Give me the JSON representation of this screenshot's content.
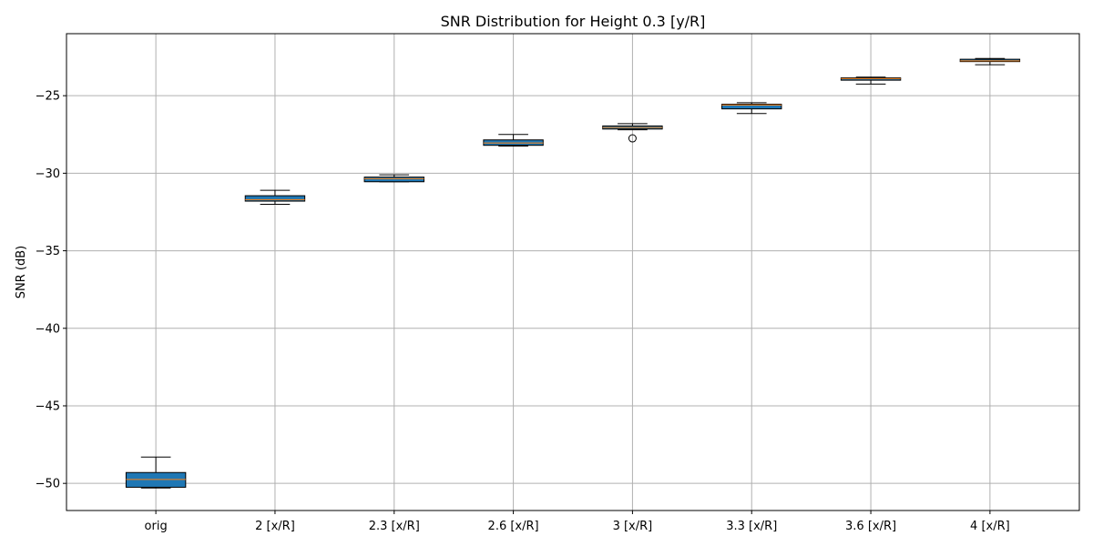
{
  "chart_data": {
    "type": "box",
    "title": "SNR Distribution for Height 0.3 [y/R]",
    "xlabel": "",
    "ylabel": "SNR (dB)",
    "categories": [
      "orig",
      "2 [x/R]",
      "2.3 [x/R]",
      "2.6 [x/R]",
      "3 [x/R]",
      "3.3 [x/R]",
      "3.6 [x/R]",
      "4 [x/R]"
    ],
    "boxes": [
      {
        "whisker_low": -50.3,
        "q1": -50.25,
        "median": -49.75,
        "q3": -49.3,
        "whisker_high": -48.3,
        "outliers": []
      },
      {
        "whisker_low": -32.0,
        "q1": -31.8,
        "median": -31.7,
        "q3": -31.45,
        "whisker_high": -31.1,
        "outliers": []
      },
      {
        "whisker_low": -30.55,
        "q1": -30.55,
        "median": -30.35,
        "q3": -30.25,
        "whisker_high": -30.1,
        "outliers": []
      },
      {
        "whisker_low": -28.25,
        "q1": -28.2,
        "median": -28.05,
        "q3": -27.85,
        "whisker_high": -27.5,
        "outliers": []
      },
      {
        "whisker_low": -27.2,
        "q1": -27.15,
        "median": -27.05,
        "q3": -26.95,
        "whisker_high": -26.8,
        "outliers": [
          -27.75
        ]
      },
      {
        "whisker_low": -26.15,
        "q1": -25.85,
        "median": -25.6,
        "q3": -25.55,
        "whisker_high": -25.45,
        "outliers": []
      },
      {
        "whisker_low": -24.25,
        "q1": -24.0,
        "median": -23.9,
        "q3": -23.85,
        "whisker_high": -23.8,
        "outliers": []
      },
      {
        "whisker_low": -23.0,
        "q1": -22.8,
        "median": -22.75,
        "q3": -22.65,
        "whisker_high": -22.6,
        "outliers": []
      }
    ],
    "ylim": [
      -51.75,
      -21.0
    ],
    "yticks": [
      -50,
      -45,
      -40,
      -35,
      -30,
      -25
    ],
    "ytick_labels": [
      "−50",
      "−45",
      "−40",
      "−35",
      "−30",
      "−25"
    ],
    "grid": true,
    "box_color": "#1f77b4",
    "median_color": "#ff7f0e",
    "grid_color": "#b0b0b0"
  }
}
